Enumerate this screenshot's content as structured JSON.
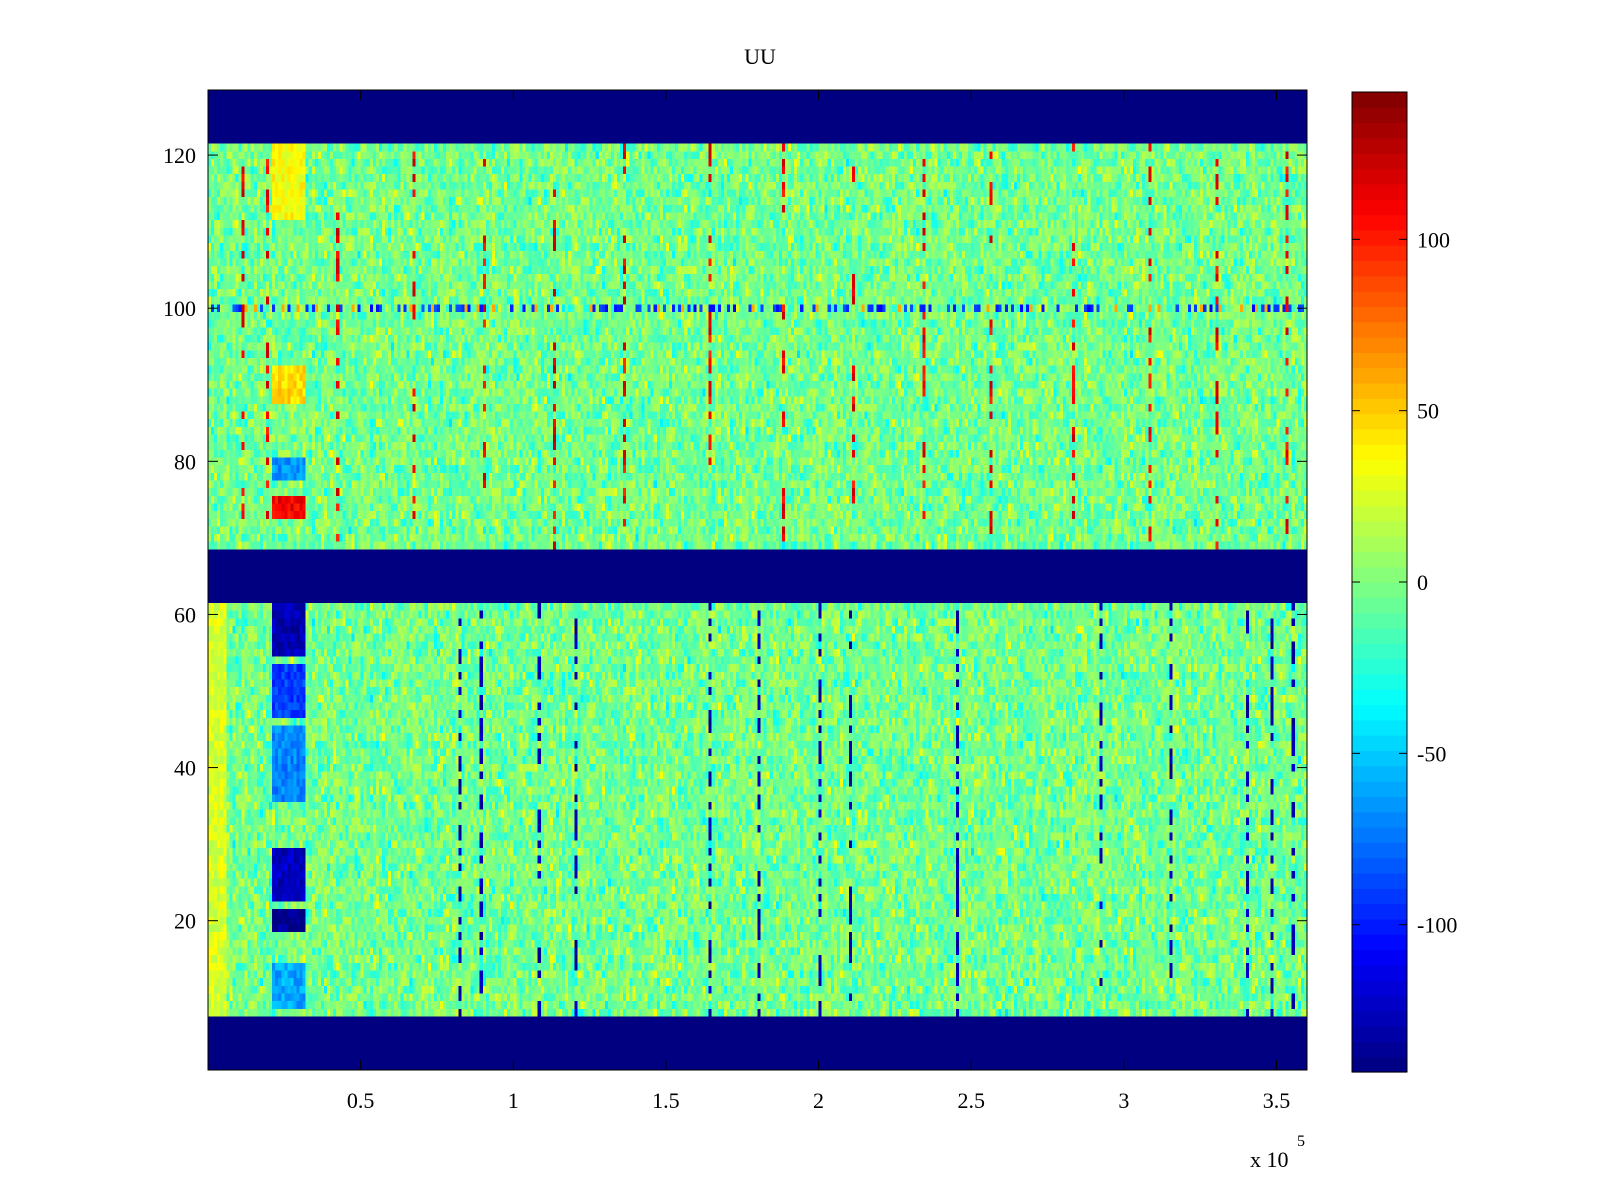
{
  "chart_data": {
    "type": "heatmap",
    "title": "UU",
    "xlabel": "",
    "ylabel": "",
    "x_exponent_label": "x 10",
    "x_exponent": "5",
    "xlim": [
      0,
      3.6
    ],
    "ylim": [
      0.5,
      128.5
    ],
    "x_ticks": [
      0.5,
      1,
      1.5,
      2,
      2.5,
      3,
      3.5
    ],
    "x_tick_labels": [
      "0.5",
      "1",
      "1.5",
      "2",
      "2.5",
      "3",
      "3.5"
    ],
    "y_ticks": [
      20,
      40,
      60,
      80,
      100,
      120
    ],
    "y_tick_labels": [
      "20",
      "40",
      "60",
      "80",
      "100",
      "120"
    ],
    "colormap": "jet",
    "clim": [
      -143,
      143
    ],
    "colorbar_ticks": [
      100,
      50,
      0,
      -50,
      -100
    ],
    "colorbar_tick_labels": [
      "100",
      "50",
      "0",
      "-50",
      "-100"
    ],
    "background_value": -143,
    "masked_row_ranges": [
      [
        1,
        7
      ],
      [
        62,
        68
      ],
      [
        122,
        128
      ]
    ],
    "data_row_ranges": [
      [
        8,
        61
      ],
      [
        69,
        121
      ]
    ],
    "noise_amplitude": 18,
    "features": [
      {
        "kind": "horizontal_band",
        "row": 100,
        "x_range": [
          0,
          3.6
        ],
        "value": -110
      },
      {
        "kind": "block",
        "rows": [
          73,
          75
        ],
        "x_range": [
          0.21,
          0.32
        ],
        "value": 110
      },
      {
        "kind": "block",
        "rows": [
          78,
          80
        ],
        "x_range": [
          0.21,
          0.32
        ],
        "value": -65
      },
      {
        "kind": "block",
        "rows": [
          88,
          92
        ],
        "x_range": [
          0.21,
          0.32
        ],
        "value": 45
      },
      {
        "kind": "block",
        "rows": [
          112,
          121
        ],
        "x_range": [
          0.21,
          0.32
        ],
        "value": 35
      },
      {
        "kind": "block",
        "rows": [
          55,
          61
        ],
        "x_range": [
          0.21,
          0.32
        ],
        "value": -130
      },
      {
        "kind": "block",
        "rows": [
          47,
          53
        ],
        "x_range": [
          0.21,
          0.32
        ],
        "value": -90
      },
      {
        "kind": "block",
        "rows": [
          36,
          45
        ],
        "x_range": [
          0.21,
          0.32
        ],
        "value": -70
      },
      {
        "kind": "block",
        "rows": [
          23,
          29
        ],
        "x_range": [
          0.21,
          0.32
        ],
        "value": -125
      },
      {
        "kind": "block",
        "rows": [
          19,
          21
        ],
        "x_range": [
          0.21,
          0.32
        ],
        "value": -140
      },
      {
        "kind": "block",
        "rows": [
          9,
          14
        ],
        "x_range": [
          0.21,
          0.32
        ],
        "value": -60
      },
      {
        "kind": "block",
        "rows": [
          8,
          61
        ],
        "x_range": [
          0.0,
          0.06
        ],
        "value": 25
      }
    ],
    "spikes_upper": [
      0.11,
      0.19,
      0.42,
      0.67,
      0.9,
      1.13,
      1.36,
      1.64,
      1.88,
      2.11,
      2.34,
      2.56,
      2.83,
      3.08,
      3.3,
      3.53
    ],
    "spikes_lower": [
      0.82,
      0.89,
      1.08,
      1.2,
      1.64,
      1.8,
      2.0,
      2.1,
      2.45,
      2.92,
      3.15,
      3.4,
      3.48,
      3.55
    ]
  }
}
